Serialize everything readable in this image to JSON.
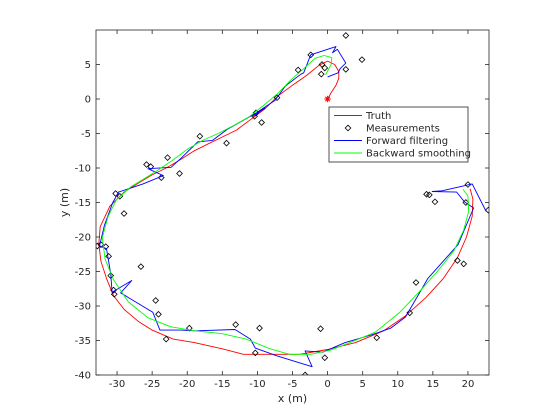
{
  "chart_data": {
    "type": "line",
    "title": "",
    "xlabel": "x (m)",
    "ylabel": "y (m)",
    "xlim": [
      -33,
      23
    ],
    "ylim": [
      -40,
      10
    ],
    "xticks": [
      -30,
      -25,
      -20,
      -15,
      -10,
      -5,
      0,
      5,
      10,
      15,
      20
    ],
    "yticks": [
      -40,
      -35,
      -30,
      -25,
      -20,
      -15,
      -10,
      -5,
      0,
      5
    ],
    "xtick_labels": [
      "-30",
      "-25",
      "-20",
      "-15",
      "-10",
      "-5",
      "0",
      "5",
      "10",
      "15",
      "20"
    ],
    "ytick_labels": [
      "-40",
      "-35",
      "-30",
      "-25",
      "-20",
      "-15",
      "-10",
      "-5",
      "0",
      "5"
    ],
    "grid": false,
    "legend_position": "right-center",
    "start_marker": {
      "x": 0,
      "y": 0,
      "symbol": "*",
      "color": "#ff0000"
    },
    "series": [
      {
        "name": "Truth",
        "kind": "line",
        "color": "#ff0000",
        "points": [
          [
            0,
            0
          ],
          [
            0.5,
            0.9
          ],
          [
            1.2,
            2.0
          ],
          [
            1.6,
            3.0
          ],
          [
            1.6,
            4.0
          ],
          [
            1,
            5.0
          ],
          [
            0,
            5.5
          ],
          [
            -1.2,
            4.9
          ],
          [
            -3,
            3.4
          ],
          [
            -5,
            2.0
          ],
          [
            -7,
            0.5
          ],
          [
            -9,
            -1.5
          ],
          [
            -11,
            -3.0
          ],
          [
            -13,
            -4.5
          ],
          [
            -15,
            -5.5
          ],
          [
            -17,
            -6.5
          ],
          [
            -19,
            -7.5
          ],
          [
            -21,
            -8.8
          ],
          [
            -23,
            -10
          ],
          [
            -25,
            -11
          ],
          [
            -27,
            -12.2
          ],
          [
            -29,
            -13.5
          ],
          [
            -31,
            -15.5
          ],
          [
            -32.4,
            -18.5
          ],
          [
            -32.6,
            -21
          ],
          [
            -32.3,
            -23.5
          ],
          [
            -31.5,
            -26
          ],
          [
            -30.5,
            -28.5
          ],
          [
            -29,
            -30.5
          ],
          [
            -27,
            -32.2
          ],
          [
            -25,
            -33.5
          ],
          [
            -22,
            -34.8
          ],
          [
            -19,
            -35.3
          ],
          [
            -15,
            -36.2
          ],
          [
            -12,
            -37
          ],
          [
            -8,
            -37
          ],
          [
            -4,
            -37
          ],
          [
            0,
            -36.3
          ],
          [
            4,
            -35.3
          ],
          [
            8,
            -33.6
          ],
          [
            11,
            -31.5
          ],
          [
            14,
            -28.8
          ],
          [
            16.5,
            -26
          ],
          [
            18.5,
            -23
          ],
          [
            19.8,
            -20
          ],
          [
            20.6,
            -17
          ],
          [
            20.7,
            -14.5
          ],
          [
            20.3,
            -13
          ]
        ]
      },
      {
        "name": "Measurements",
        "kind": "markers",
        "color": "#000000",
        "points": [
          [
            2.6,
            9.2
          ],
          [
            -2.4,
            6.4
          ],
          [
            4.9,
            5.7
          ],
          [
            -0.8,
            5.0
          ],
          [
            -0.4,
            4.5
          ],
          [
            2.6,
            4.3
          ],
          [
            -4.2,
            4.2
          ],
          [
            -0.9,
            3.6
          ],
          [
            -7.2,
            0.2
          ],
          [
            -10.2,
            -2.0
          ],
          [
            -10.4,
            -2.5
          ],
          [
            -9.4,
            -3.4
          ],
          [
            -18.2,
            -5.4
          ],
          [
            -14.4,
            -6.4
          ],
          [
            -22.8,
            -8.5
          ],
          [
            -25.8,
            -9.5
          ],
          [
            -25.2,
            -9.8
          ],
          [
            -23.7,
            -11.4
          ],
          [
            -21.1,
            -10.8
          ],
          [
            -30.2,
            -13.7
          ],
          [
            -29.6,
            -14.1
          ],
          [
            -29.0,
            -16.6
          ],
          [
            -32.3,
            -21.1
          ],
          [
            -32.8,
            -21.3
          ],
          [
            -31.6,
            -21.4
          ],
          [
            -31.2,
            -22.8
          ],
          [
            -26.6,
            -24.3
          ],
          [
            -30.9,
            -25.6
          ],
          [
            -30.5,
            -27.7
          ],
          [
            -30.4,
            -28.3
          ],
          [
            -24.5,
            -29.2
          ],
          [
            -24.1,
            -31.2
          ],
          [
            -19.7,
            -33.2
          ],
          [
            -23.0,
            -34.8
          ],
          [
            -13.1,
            -32.7
          ],
          [
            -9.7,
            -33.2
          ],
          [
            -10.3,
            -36.8
          ],
          [
            -1.0,
            -33.3
          ],
          [
            -0.4,
            -37.5
          ],
          [
            -3.2,
            -40.0
          ],
          [
            7.0,
            -34.6
          ],
          [
            11.7,
            -31.0
          ],
          [
            12.6,
            -26.6
          ],
          [
            14.1,
            -13.8
          ],
          [
            15.3,
            -14.9
          ],
          [
            14.5,
            -13.9
          ],
          [
            20.0,
            -12.4
          ],
          [
            19.7,
            -15.0
          ],
          [
            22.9,
            -16.1
          ],
          [
            18.5,
            -23.4
          ],
          [
            19.4,
            -23.9
          ]
        ]
      },
      {
        "name": "Forward filtering",
        "kind": "line",
        "color": "#0000ff",
        "points": [
          [
            0,
            3.2
          ],
          [
            1.5,
            3.8
          ],
          [
            1.8,
            4.4
          ],
          [
            2.6,
            5.2
          ],
          [
            1.4,
            7.2
          ],
          [
            0.7,
            6.7
          ],
          [
            1.2,
            7.6
          ],
          [
            -1.2,
            6.8
          ],
          [
            -2.4,
            6.4
          ],
          [
            -3.4,
            3.8
          ],
          [
            -3.8,
            3.6
          ],
          [
            -6.0,
            1.9
          ],
          [
            -7.5,
            -0.2
          ],
          [
            -10.0,
            -1.9
          ],
          [
            -10.6,
            -2.5
          ],
          [
            -8.9,
            -1.3
          ],
          [
            -14.3,
            -4.4
          ],
          [
            -16.4,
            -6.0
          ],
          [
            -18.5,
            -6.2
          ],
          [
            -20.8,
            -8.5
          ],
          [
            -22.3,
            -9.9
          ],
          [
            -25.6,
            -10.1
          ],
          [
            -23.4,
            -11.1
          ],
          [
            -26.3,
            -12.3
          ],
          [
            -29.8,
            -13.5
          ],
          [
            -30.6,
            -15.0
          ],
          [
            -31.8,
            -18.3
          ],
          [
            -32.5,
            -21.3
          ],
          [
            -31.5,
            -21.7
          ],
          [
            -30.9,
            -25.3
          ],
          [
            -30.7,
            -28.0
          ],
          [
            -27.9,
            -26.3
          ],
          [
            -29.5,
            -28.1
          ],
          [
            -24.9,
            -30.9
          ],
          [
            -23.9,
            -33.5
          ],
          [
            -21.0,
            -33.5
          ],
          [
            -18.7,
            -33.6
          ],
          [
            -13.2,
            -33.4
          ],
          [
            -11.0,
            -34.8
          ],
          [
            -10.3,
            -36.1
          ],
          [
            -7.3,
            -37.2
          ],
          [
            -2.2,
            -38.8
          ],
          [
            -3.2,
            -36.5
          ],
          [
            -0.7,
            -36.7
          ],
          [
            2.5,
            -35.3
          ],
          [
            6.2,
            -34.2
          ],
          [
            9.0,
            -33.2
          ],
          [
            11.1,
            -31.6
          ],
          [
            14.3,
            -26.0
          ],
          [
            17.1,
            -22.8
          ],
          [
            18.6,
            -21.1
          ],
          [
            20.8,
            -15.8
          ],
          [
            19.5,
            -14.9
          ],
          [
            18.4,
            -13.5
          ],
          [
            14.9,
            -13.4
          ],
          [
            16.3,
            -13.3
          ],
          [
            20.6,
            -12.3
          ],
          [
            22.6,
            -16.3
          ]
        ]
      },
      {
        "name": "Backward smoothing",
        "kind": "line",
        "color": "#00ff00",
        "points": [
          [
            -0.3,
            3.5
          ],
          [
            0.5,
            5.0
          ],
          [
            0.6,
            6.0
          ],
          [
            -0.5,
            6.3
          ],
          [
            -1.8,
            5.9
          ],
          [
            -3.5,
            4.3
          ],
          [
            -5.2,
            2.8
          ],
          [
            -7.0,
            0.9
          ],
          [
            -9.2,
            -1.0
          ],
          [
            -11.2,
            -2.6
          ],
          [
            -13.3,
            -3.8
          ],
          [
            -15.6,
            -5.0
          ],
          [
            -17.8,
            -6.0
          ],
          [
            -20.0,
            -7.3
          ],
          [
            -22.1,
            -8.9
          ],
          [
            -24.2,
            -10.3
          ],
          [
            -26.2,
            -11.6
          ],
          [
            -28.0,
            -12.7
          ],
          [
            -30.1,
            -14.6
          ],
          [
            -31.3,
            -17.1
          ],
          [
            -32.1,
            -20.1
          ],
          [
            -31.7,
            -23.2
          ],
          [
            -30.5,
            -26.2
          ],
          [
            -28.4,
            -29.4
          ],
          [
            -25.6,
            -31.7
          ],
          [
            -22.4,
            -33.0
          ],
          [
            -19.0,
            -33.6
          ],
          [
            -15.1,
            -34.0
          ],
          [
            -11.6,
            -34.8
          ],
          [
            -8.2,
            -36.2
          ],
          [
            -5.4,
            -37.0
          ],
          [
            -2.4,
            -37.0
          ],
          [
            0.4,
            -36.4
          ],
          [
            3.4,
            -35.2
          ],
          [
            6.8,
            -33.8
          ],
          [
            10.2,
            -31.0
          ],
          [
            13.2,
            -27.8
          ],
          [
            15.8,
            -24.8
          ],
          [
            18.0,
            -22.0
          ],
          [
            19.4,
            -19.0
          ],
          [
            20.1,
            -16.3
          ],
          [
            20.0,
            -14.0
          ],
          [
            19.3,
            -13.1
          ]
        ]
      }
    ]
  }
}
